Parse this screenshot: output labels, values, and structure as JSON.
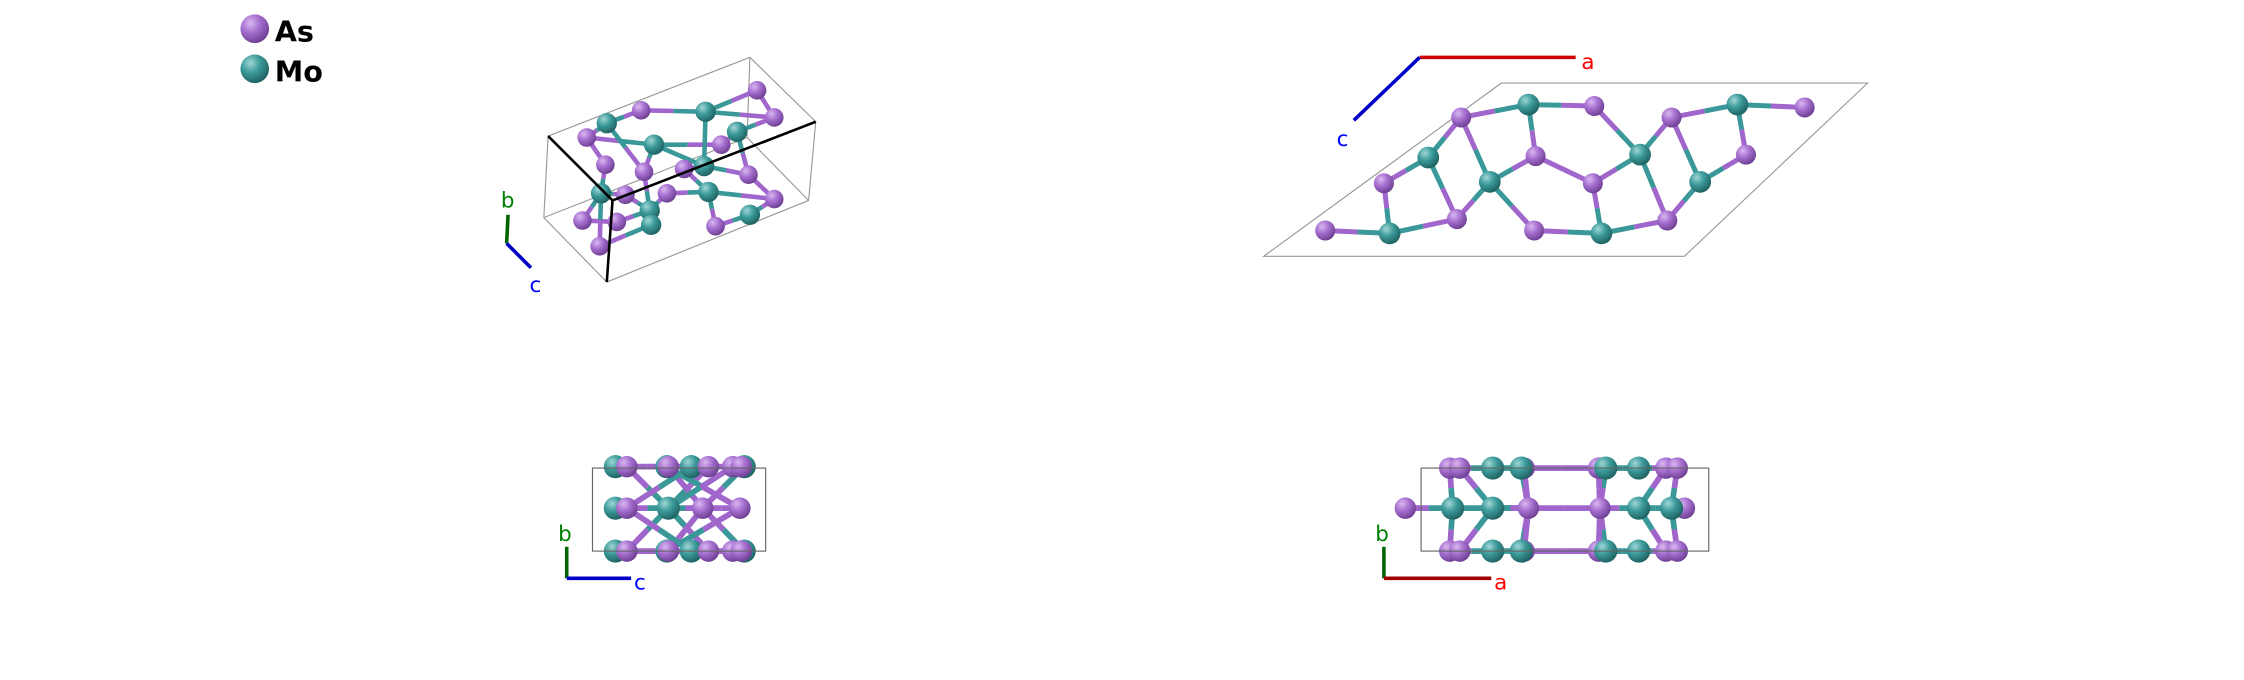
{
  "legend": {
    "items": [
      {
        "label": "As",
        "color": "#a066cc"
      },
      {
        "label": "Mo",
        "color": "#3a9898"
      }
    ]
  },
  "axis_colors": {
    "a": "#ff0000",
    "b": "#008000",
    "c": "#0000ff"
  },
  "panels": [
    {
      "view": "perspective",
      "axes": [
        {
          "label": "b"
        },
        {
          "label": "c"
        }
      ]
    },
    {
      "view": "along-b",
      "axes": [
        {
          "label": "a"
        },
        {
          "label": "c"
        }
      ]
    },
    {
      "view": "along-a",
      "axes": [
        {
          "label": "b"
        },
        {
          "label": "c"
        }
      ]
    },
    {
      "view": "along-c",
      "axes": [
        {
          "label": "b"
        },
        {
          "label": "a"
        }
      ]
    }
  ]
}
